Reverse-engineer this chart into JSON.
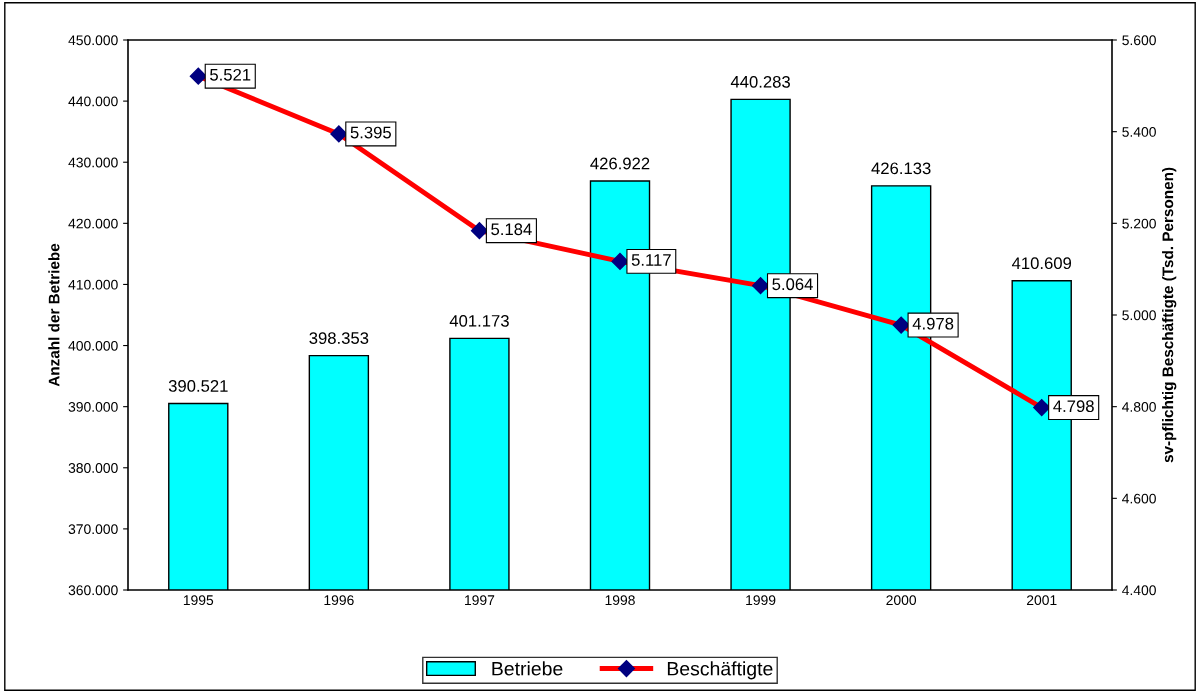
{
  "chart_data": {
    "type": "bar",
    "categories": [
      "1995",
      "1996",
      "1997",
      "1998",
      "1999",
      "2000",
      "2001"
    ],
    "ylabel": "Anzahl der Betriebe",
    "y2label": "sv-pflichtig Beschäftigte (Tsd. Personen)",
    "ylim": [
      360000,
      450000
    ],
    "yticks": [
      {
        "value": 360000,
        "label": "360.000"
      },
      {
        "value": 370000,
        "label": "370.000"
      },
      {
        "value": 380000,
        "label": "380.000"
      },
      {
        "value": 390000,
        "label": "390.000"
      },
      {
        "value": 400000,
        "label": "400.000"
      },
      {
        "value": 410000,
        "label": "410.000"
      },
      {
        "value": 420000,
        "label": "420.000"
      },
      {
        "value": 430000,
        "label": "430.000"
      },
      {
        "value": 440000,
        "label": "440.000"
      },
      {
        "value": 450000,
        "label": "450.000"
      }
    ],
    "y2lim": [
      4400,
      5600
    ],
    "y2ticks": [
      {
        "value": 4400,
        "label": "4.400"
      },
      {
        "value": 4600,
        "label": "4.600"
      },
      {
        "value": 4800,
        "label": "4.800"
      },
      {
        "value": 5000,
        "label": "5.000"
      },
      {
        "value": 5200,
        "label": "5.200"
      },
      {
        "value": 5400,
        "label": "5.400"
      },
      {
        "value": 5600,
        "label": "5.600"
      }
    ],
    "series": [
      {
        "name": "Betriebe",
        "color": "#00ffff",
        "values": [
          390521,
          398353,
          401173,
          426922,
          440283,
          426133,
          410609
        ],
        "value_labels": [
          "390.521",
          "398.353",
          "401.173",
          "426.922",
          "440.283",
          "426.133",
          "410.609"
        ]
      },
      {
        "name": "Beschäftigte",
        "type": "line",
        "axis": "y2",
        "color": "#ff0000",
        "marker": "diamond",
        "values": [
          5521,
          5395,
          5184,
          5117,
          5064,
          4978,
          4798
        ],
        "value_labels": [
          "5.521",
          "5.395",
          "5.184",
          "5.117",
          "5.064",
          "4.978",
          "4.798"
        ]
      }
    ],
    "legend": "bottom",
    "grid": false
  }
}
